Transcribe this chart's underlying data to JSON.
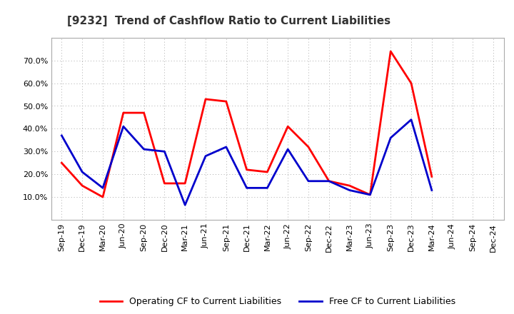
{
  "title": "[9232]  Trend of Cashflow Ratio to Current Liabilities",
  "x_labels": [
    "Sep-19",
    "Dec-19",
    "Mar-20",
    "Jun-20",
    "Sep-20",
    "Dec-20",
    "Mar-21",
    "Jun-21",
    "Sep-21",
    "Dec-21",
    "Mar-22",
    "Jun-22",
    "Sep-22",
    "Dec-22",
    "Mar-23",
    "Jun-23",
    "Sep-23",
    "Dec-23",
    "Mar-24",
    "Jun-24",
    "Sep-24",
    "Dec-24"
  ],
  "operating_cf": [
    0.25,
    0.15,
    0.1,
    0.47,
    0.47,
    0.16,
    0.16,
    0.53,
    0.52,
    0.22,
    0.21,
    0.41,
    0.32,
    0.17,
    0.15,
    0.11,
    0.74,
    0.6,
    0.19,
    null,
    null,
    null
  ],
  "free_cf": [
    0.37,
    0.21,
    0.14,
    0.41,
    0.31,
    0.3,
    0.065,
    0.28,
    0.32,
    0.14,
    0.14,
    0.31,
    0.17,
    0.17,
    0.13,
    0.11,
    0.36,
    0.44,
    0.13,
    null,
    null,
    null
  ],
  "operating_color": "#FF0000",
  "free_color": "#0000CC",
  "background_color": "#FFFFFF",
  "plot_background": "#FFFFFF",
  "grid_color": "#AAAAAA",
  "ylim": [
    0.0,
    0.8
  ],
  "yticks": [
    0.1,
    0.2,
    0.3,
    0.4,
    0.5,
    0.6,
    0.7
  ],
  "legend_operating": "Operating CF to Current Liabilities",
  "legend_free": "Free CF to Current Liabilities",
  "line_width": 2.0,
  "title_fontsize": 11,
  "tick_fontsize": 8
}
